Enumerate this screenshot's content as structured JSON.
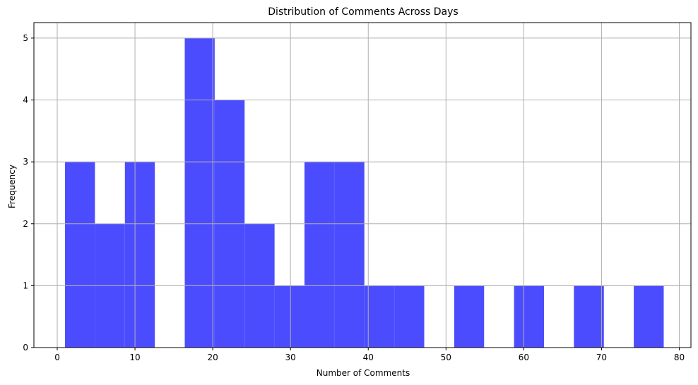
{
  "chart_data": {
    "type": "bar",
    "title": "Distribution of Comments Across Days",
    "xlabel": "Number of Comments",
    "ylabel": "Frequency",
    "xlim": [
      -3,
      81.5
    ],
    "ylim": [
      0,
      5.25
    ],
    "xticks": [
      0,
      10,
      20,
      30,
      40,
      50,
      60,
      70,
      80
    ],
    "yticks": [
      0,
      1,
      2,
      3,
      4,
      5
    ],
    "grid": true,
    "bar_color": "#4c4cff",
    "bins": [
      {
        "start": 1.0,
        "end": 4.85,
        "count": 3
      },
      {
        "start": 4.85,
        "end": 8.7,
        "count": 2
      },
      {
        "start": 8.7,
        "end": 12.55,
        "count": 3
      },
      {
        "start": 12.55,
        "end": 16.4,
        "count": 0
      },
      {
        "start": 16.4,
        "end": 20.25,
        "count": 5
      },
      {
        "start": 20.25,
        "end": 24.1,
        "count": 4
      },
      {
        "start": 24.1,
        "end": 27.95,
        "count": 2
      },
      {
        "start": 27.95,
        "end": 31.8,
        "count": 1
      },
      {
        "start": 31.8,
        "end": 35.65,
        "count": 3
      },
      {
        "start": 35.65,
        "end": 39.5,
        "count": 3
      },
      {
        "start": 39.5,
        "end": 43.35,
        "count": 1
      },
      {
        "start": 43.35,
        "end": 47.2,
        "count": 1
      },
      {
        "start": 47.2,
        "end": 51.05,
        "count": 0
      },
      {
        "start": 51.05,
        "end": 54.9,
        "count": 1
      },
      {
        "start": 54.9,
        "end": 58.75,
        "count": 0
      },
      {
        "start": 58.75,
        "end": 62.6,
        "count": 1
      },
      {
        "start": 62.6,
        "end": 66.45,
        "count": 0
      },
      {
        "start": 66.45,
        "end": 70.3,
        "count": 1
      },
      {
        "start": 70.3,
        "end": 74.15,
        "count": 0
      },
      {
        "start": 74.15,
        "end": 78.0,
        "count": 1
      }
    ]
  }
}
